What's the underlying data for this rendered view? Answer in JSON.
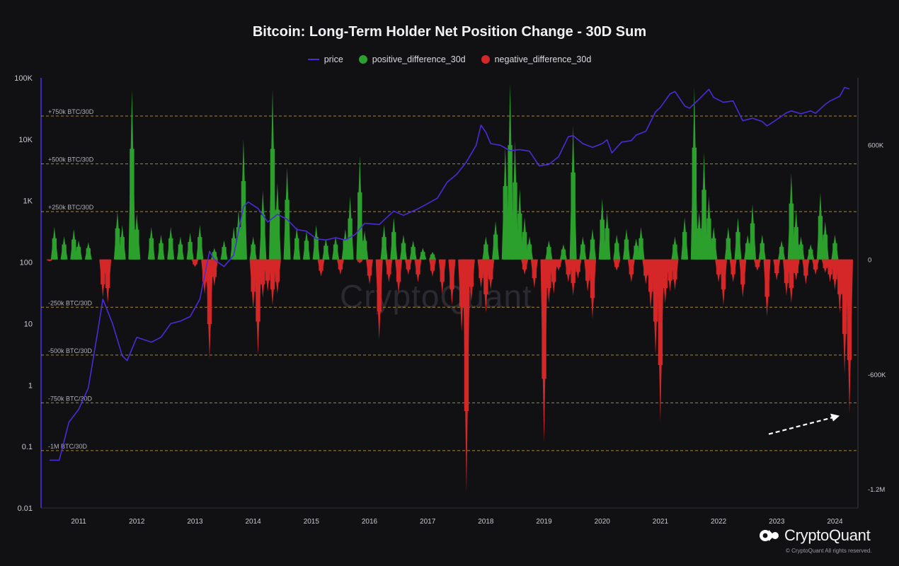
{
  "chart_data": {
    "type": "bar",
    "title": "Bitcoin: Long-Term Holder Net Position Change - 30D Sum",
    "legend": [
      {
        "name": "price",
        "color": "#4b2bd6",
        "shape": "line"
      },
      {
        "name": "positive_difference_30d",
        "color": "#2ca02c",
        "shape": "dot"
      },
      {
        "name": "negative_difference_30d",
        "color": "#d62728",
        "shape": "dot"
      }
    ],
    "legend_placement": "top-center",
    "grid": false,
    "x_axis": {
      "type": "date",
      "range": [
        "2010-07",
        "2024-04"
      ],
      "tick_labels": [
        "2011",
        "2012",
        "2013",
        "2014",
        "2015",
        "2016",
        "2017",
        "2018",
        "2019",
        "2020",
        "2021",
        "2022",
        "2023",
        "2024"
      ]
    },
    "y_left": {
      "scale": "log",
      "range": [
        0.01,
        100000
      ],
      "tick_labels": [
        "0.01",
        "0.1",
        "1",
        "10",
        "100",
        "1K",
        "10K",
        "100K"
      ],
      "tick_values": [
        0.01,
        0.1,
        1,
        10,
        100,
        1000,
        10000,
        100000
      ]
    },
    "y_right": {
      "scale": "linear",
      "range": [
        -1300000,
        950000
      ],
      "tick_labels": [
        "-1.2M",
        "-600K",
        "0",
        "600K"
      ],
      "tick_values": [
        -1200000,
        -600000,
        0,
        600000
      ]
    },
    "reference_lines": [
      {
        "label": "+750k BTC/30D",
        "value": 750000
      },
      {
        "label": "+500k BTC/30D",
        "value": 500000
      },
      {
        "label": "+250k BTC/30D",
        "value": 250000
      },
      {
        "label": "-250k BTC/30D",
        "value": -250000
      },
      {
        "label": "-500k BTC/30D",
        "value": -500000
      },
      {
        "label": "-750k BTC/30D",
        "value": -750000
      },
      {
        "label": "-1M BTC/30D",
        "value": -1000000
      }
    ],
    "series": [
      {
        "name": "price",
        "axis": "left",
        "points": [
          [
            "2010-07",
            0.06
          ],
          [
            "2010-09",
            0.06
          ],
          [
            "2010-11",
            0.25
          ],
          [
            "2011-01",
            0.4
          ],
          [
            "2011-03",
            0.9
          ],
          [
            "2011-05",
            8
          ],
          [
            "2011-06",
            25
          ],
          [
            "2011-08",
            10
          ],
          [
            "2011-10",
            3
          ],
          [
            "2011-11",
            2.5
          ],
          [
            "2012-01",
            6
          ],
          [
            "2012-04",
            5
          ],
          [
            "2012-06",
            6
          ],
          [
            "2012-08",
            10
          ],
          [
            "2012-10",
            11
          ],
          [
            "2012-12",
            13
          ],
          [
            "2013-02",
            25
          ],
          [
            "2013-04",
            150
          ],
          [
            "2013-05",
            110
          ],
          [
            "2013-07",
            85
          ],
          [
            "2013-09",
            130
          ],
          [
            "2013-11",
            800
          ],
          [
            "2013-12",
            950
          ],
          [
            "2014-02",
            750
          ],
          [
            "2014-04",
            450
          ],
          [
            "2014-06",
            600
          ],
          [
            "2014-08",
            500
          ],
          [
            "2014-10",
            340
          ],
          [
            "2014-12",
            320
          ],
          [
            "2015-02",
            240
          ],
          [
            "2015-04",
            230
          ],
          [
            "2015-06",
            250
          ],
          [
            "2015-08",
            230
          ],
          [
            "2015-10",
            280
          ],
          [
            "2015-12",
            430
          ],
          [
            "2016-03",
            410
          ],
          [
            "2016-06",
            680
          ],
          [
            "2016-08",
            580
          ],
          [
            "2016-11",
            740
          ],
          [
            "2017-01",
            900
          ],
          [
            "2017-03",
            1100
          ],
          [
            "2017-05",
            2000
          ],
          [
            "2017-07",
            2700
          ],
          [
            "2017-09",
            4300
          ],
          [
            "2017-11",
            8000
          ],
          [
            "2017-12",
            17000
          ],
          [
            "2018-01",
            13000
          ],
          [
            "2018-02",
            8500
          ],
          [
            "2018-04",
            8000
          ],
          [
            "2018-06",
            6500
          ],
          [
            "2018-08",
            6800
          ],
          [
            "2018-10",
            6400
          ],
          [
            "2018-12",
            3700
          ],
          [
            "2019-02",
            3900
          ],
          [
            "2019-04",
            5200
          ],
          [
            "2019-06",
            11000
          ],
          [
            "2019-07",
            11500
          ],
          [
            "2019-09",
            8500
          ],
          [
            "2019-11",
            7400
          ],
          [
            "2020-01",
            8500
          ],
          [
            "2020-02",
            9800
          ],
          [
            "2020-03",
            6000
          ],
          [
            "2020-05",
            9000
          ],
          [
            "2020-07",
            9500
          ],
          [
            "2020-08",
            11700
          ],
          [
            "2020-10",
            13500
          ],
          [
            "2020-12",
            28000
          ],
          [
            "2021-01",
            33000
          ],
          [
            "2021-03",
            55000
          ],
          [
            "2021-04",
            60000
          ],
          [
            "2021-06",
            35000
          ],
          [
            "2021-07",
            32000
          ],
          [
            "2021-09",
            45000
          ],
          [
            "2021-11",
            65000
          ],
          [
            "2021-12",
            48000
          ],
          [
            "2022-02",
            40000
          ],
          [
            "2022-04",
            42000
          ],
          [
            "2022-06",
            20000
          ],
          [
            "2022-08",
            22000
          ],
          [
            "2022-10",
            19500
          ],
          [
            "2022-11",
            16500
          ],
          [
            "2023-01",
            21000
          ],
          [
            "2023-03",
            27000
          ],
          [
            "2023-04",
            29000
          ],
          [
            "2023-06",
            26000
          ],
          [
            "2023-08",
            29000
          ],
          [
            "2023-09",
            26500
          ],
          [
            "2023-11",
            37000
          ],
          [
            "2023-12",
            42000
          ],
          [
            "2024-02",
            50000
          ],
          [
            "2024-03",
            70000
          ],
          [
            "2024-04",
            66000
          ]
        ]
      },
      {
        "name": "positive_difference_30d",
        "axis": "right",
        "points": [
          [
            "2010-08",
            170000
          ],
          [
            "2010-10",
            120000
          ],
          [
            "2010-12",
            160000
          ],
          [
            "2011-01",
            100000
          ],
          [
            "2011-03",
            90000
          ],
          [
            "2011-09",
            250000
          ],
          [
            "2011-10",
            180000
          ],
          [
            "2011-12",
            890000
          ],
          [
            "2012-01",
            240000
          ],
          [
            "2012-04",
            170000
          ],
          [
            "2012-06",
            130000
          ],
          [
            "2012-08",
            170000
          ],
          [
            "2012-10",
            120000
          ],
          [
            "2012-12",
            140000
          ],
          [
            "2013-02",
            180000
          ],
          [
            "2013-05",
            60000
          ],
          [
            "2013-07",
            100000
          ],
          [
            "2013-09",
            170000
          ],
          [
            "2013-10",
            260000
          ],
          [
            "2013-11",
            630000
          ],
          [
            "2014-01",
            120000
          ],
          [
            "2014-03",
            360000
          ],
          [
            "2014-05",
            890000
          ],
          [
            "2014-06",
            400000
          ],
          [
            "2014-08",
            480000
          ],
          [
            "2014-10",
            170000
          ],
          [
            "2014-12",
            150000
          ],
          [
            "2015-02",
            180000
          ],
          [
            "2015-04",
            110000
          ],
          [
            "2015-06",
            120000
          ],
          [
            "2015-08",
            160000
          ],
          [
            "2015-09",
            330000
          ],
          [
            "2015-11",
            540000
          ],
          [
            "2015-12",
            150000
          ],
          [
            "2016-04",
            180000
          ],
          [
            "2016-06",
            220000
          ],
          [
            "2016-08",
            130000
          ],
          [
            "2016-10",
            100000
          ],
          [
            "2016-12",
            60000
          ],
          [
            "2017-02",
            40000
          ],
          [
            "2018-01",
            120000
          ],
          [
            "2018-03",
            200000
          ],
          [
            "2018-05",
            590000
          ],
          [
            "2018-06",
            920000
          ],
          [
            "2018-07",
            620000
          ],
          [
            "2018-08",
            370000
          ],
          [
            "2018-09",
            220000
          ],
          [
            "2018-10",
            120000
          ],
          [
            "2019-02",
            100000
          ],
          [
            "2019-05",
            80000
          ],
          [
            "2019-07",
            700000
          ],
          [
            "2019-09",
            120000
          ],
          [
            "2019-11",
            160000
          ],
          [
            "2020-01",
            320000
          ],
          [
            "2020-02",
            250000
          ],
          [
            "2020-04",
            130000
          ],
          [
            "2020-06",
            160000
          ],
          [
            "2020-08",
            110000
          ],
          [
            "2020-09",
            170000
          ],
          [
            "2021-04",
            120000
          ],
          [
            "2021-06",
            220000
          ],
          [
            "2021-08",
            900000
          ],
          [
            "2021-09",
            250000
          ],
          [
            "2021-10",
            560000
          ],
          [
            "2021-11",
            330000
          ],
          [
            "2021-12",
            170000
          ],
          [
            "2022-03",
            170000
          ],
          [
            "2022-05",
            220000
          ],
          [
            "2022-07",
            130000
          ],
          [
            "2022-08",
            290000
          ],
          [
            "2022-10",
            130000
          ],
          [
            "2023-02",
            100000
          ],
          [
            "2023-04",
            450000
          ],
          [
            "2023-05",
            260000
          ],
          [
            "2023-06",
            120000
          ],
          [
            "2023-08",
            80000
          ],
          [
            "2023-10",
            350000
          ],
          [
            "2023-11",
            200000
          ],
          [
            "2024-01",
            130000
          ]
        ]
      },
      {
        "name": "negative_difference_30d",
        "axis": "right",
        "points": [
          [
            "2010-07",
            -10000
          ],
          [
            "2011-06",
            -200000
          ],
          [
            "2011-07",
            -230000
          ],
          [
            "2013-01",
            -40000
          ],
          [
            "2013-03",
            -180000
          ],
          [
            "2013-04",
            -520000
          ],
          [
            "2013-05",
            -140000
          ],
          [
            "2014-01",
            -260000
          ],
          [
            "2014-02",
            -500000
          ],
          [
            "2014-03",
            -200000
          ],
          [
            "2014-04",
            -170000
          ],
          [
            "2014-05",
            -240000
          ],
          [
            "2014-06",
            -180000
          ],
          [
            "2015-03",
            -90000
          ],
          [
            "2015-07",
            -80000
          ],
          [
            "2015-11",
            -20000
          ],
          [
            "2016-01",
            -130000
          ],
          [
            "2016-03",
            -420000
          ],
          [
            "2016-05",
            -120000
          ],
          [
            "2016-07",
            -180000
          ],
          [
            "2016-09",
            -80000
          ],
          [
            "2016-11",
            -120000
          ],
          [
            "2017-02",
            -90000
          ],
          [
            "2017-04",
            -180000
          ],
          [
            "2017-06",
            -240000
          ],
          [
            "2017-08",
            -380000
          ],
          [
            "2017-09",
            -1220000
          ],
          [
            "2017-10",
            -220000
          ],
          [
            "2017-12",
            -150000
          ],
          [
            "2018-01",
            -280000
          ],
          [
            "2018-02",
            -160000
          ],
          [
            "2018-09",
            -80000
          ],
          [
            "2018-11",
            -150000
          ],
          [
            "2019-01",
            -960000
          ],
          [
            "2019-02",
            -230000
          ],
          [
            "2019-03",
            -180000
          ],
          [
            "2019-04",
            -60000
          ],
          [
            "2019-06",
            -120000
          ],
          [
            "2019-07",
            -190000
          ],
          [
            "2019-08",
            -100000
          ],
          [
            "2019-10",
            -170000
          ],
          [
            "2019-11",
            -310000
          ],
          [
            "2020-04",
            -60000
          ],
          [
            "2020-07",
            -120000
          ],
          [
            "2020-10",
            -130000
          ],
          [
            "2020-11",
            -260000
          ],
          [
            "2020-12",
            -500000
          ],
          [
            "2021-01",
            -850000
          ],
          [
            "2021-02",
            -230000
          ],
          [
            "2021-03",
            -170000
          ],
          [
            "2021-04",
            -160000
          ],
          [
            "2022-01",
            -120000
          ],
          [
            "2022-02",
            -240000
          ],
          [
            "2022-04",
            -120000
          ],
          [
            "2022-06",
            -200000
          ],
          [
            "2022-09",
            -60000
          ],
          [
            "2022-11",
            -300000
          ],
          [
            "2023-01",
            -110000
          ],
          [
            "2023-03",
            -190000
          ],
          [
            "2023-04",
            -230000
          ],
          [
            "2023-05",
            -110000
          ],
          [
            "2023-07",
            -130000
          ],
          [
            "2023-09",
            -80000
          ],
          [
            "2023-11",
            -70000
          ],
          [
            "2023-12",
            -120000
          ],
          [
            "2024-01",
            -160000
          ],
          [
            "2024-02",
            -280000
          ],
          [
            "2024-03",
            -600000
          ],
          [
            "2024-04",
            -810000
          ]
        ]
      }
    ],
    "annotations": [
      {
        "type": "arrow",
        "color": "#ffffff",
        "style": "dashed",
        "points_to": [
          "2024-04",
          -810000
        ]
      }
    ]
  },
  "brand": {
    "name": "CryptoQuant",
    "copyright": "© CryptoQuant All rights reserved."
  },
  "watermark": "CryptoQuant"
}
